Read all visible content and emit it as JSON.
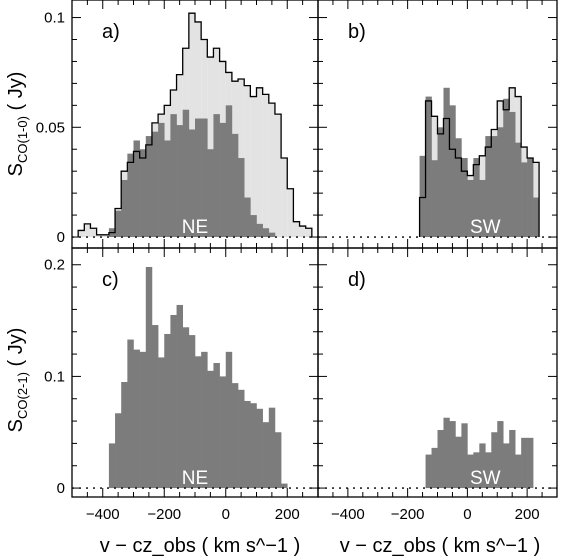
{
  "chart_data": [
    {
      "type": "bar",
      "panel": "a)",
      "region": "NE",
      "xlabel": "",
      "ylabel": "S_CO(1-0) ( Jy)",
      "xlim": [
        -500,
        300
      ],
      "ylim": [
        -0.005,
        0.108
      ],
      "yticks": [
        0,
        0.05,
        0.1
      ],
      "ytick_labels": [
        "0",
        "0.05",
        "0.1"
      ],
      "bin_width": 20,
      "series": [
        {
          "style": "light-fill-outline",
          "x": [
            -470,
            -450,
            -430,
            -410,
            -390,
            -370,
            -350,
            -330,
            -310,
            -290,
            -270,
            -250,
            -230,
            -210,
            -190,
            -170,
            -150,
            -130,
            -110,
            -90,
            -70,
            -50,
            -30,
            -10,
            10,
            30,
            50,
            70,
            90,
            110,
            130,
            150,
            170,
            190,
            210,
            230,
            250,
            270
          ],
          "values": [
            0.003,
            0.006,
            0.004,
            0.001,
            0.001,
            0.002,
            0.013,
            0.03,
            0.034,
            0.039,
            0.036,
            0.042,
            0.052,
            0.056,
            0.06,
            0.067,
            0.074,
            0.086,
            0.102,
            0.098,
            0.09,
            0.082,
            0.086,
            0.08,
            0.075,
            0.071,
            0.072,
            0.069,
            0.064,
            0.068,
            0.065,
            0.061,
            0.056,
            0.036,
            0.022,
            0.007,
            0.005,
            0.004
          ]
        },
        {
          "style": "dark-fill",
          "x": [
            -470,
            -450,
            -430,
            -410,
            -390,
            -370,
            -350,
            -330,
            -310,
            -290,
            -270,
            -250,
            -230,
            -210,
            -190,
            -170,
            -150,
            -130,
            -110,
            -90,
            -70,
            -50,
            -30,
            -10,
            10,
            30,
            50,
            70,
            90,
            110,
            130,
            150,
            170,
            190,
            210,
            230,
            250,
            270
          ],
          "values": [
            0,
            0,
            0,
            0,
            0,
            0.004,
            0.012,
            0.026,
            0.038,
            0.044,
            0.04,
            0.046,
            0.048,
            0.052,
            0.044,
            0.056,
            0.051,
            0.058,
            0.049,
            0.054,
            0.054,
            0.04,
            0.056,
            0.052,
            0.06,
            0.047,
            0.036,
            0.018,
            0.01,
            0.006,
            0.004,
            0.002,
            0,
            0,
            0,
            0,
            0,
            0
          ]
        }
      ]
    },
    {
      "type": "bar",
      "panel": "b)",
      "region": "SW",
      "xlabel": "",
      "ylabel": "",
      "xlim": [
        -500,
        300
      ],
      "ylim": [
        -0.005,
        0.108
      ],
      "bin_width": 20,
      "series": [
        {
          "style": "light-fill-outline",
          "x": [
            -150,
            -130,
            -110,
            -90,
            -70,
            -50,
            -30,
            -10,
            10,
            30,
            50,
            70,
            90,
            110,
            130,
            150,
            170,
            190,
            210,
            230
          ],
          "values": [
            0.018,
            0.062,
            0.055,
            0.047,
            0.054,
            0.04,
            0.036,
            0.03,
            0.028,
            0.033,
            0.037,
            0.041,
            0.049,
            0.062,
            0.058,
            0.068,
            0.064,
            0.041,
            0.036,
            0.034
          ]
        },
        {
          "style": "dark-fill",
          "x": [
            -150,
            -130,
            -110,
            -90,
            -70,
            -50,
            -30,
            -10,
            10,
            30,
            50,
            70,
            90,
            110,
            130,
            150,
            170,
            190,
            210,
            230
          ],
          "values": [
            0.037,
            0.064,
            0.035,
            0.05,
            0.068,
            0.06,
            0.045,
            0.036,
            0.026,
            0.036,
            0.026,
            0.046,
            0.046,
            0.05,
            0.063,
            0.057,
            0.043,
            0.034,
            0.036,
            0.018
          ]
        }
      ]
    },
    {
      "type": "bar",
      "panel": "c)",
      "region": "NE",
      "xlabel": "v − cz_obs ( km s^−1 )",
      "ylabel": "S_CO(2-1) ( Jy)",
      "xlim": [
        -500,
        300
      ],
      "ylim": [
        -0.008,
        0.215
      ],
      "xticks": [
        -400,
        -200,
        0,
        200
      ],
      "xtick_labels": [
        "−400",
        "−200",
        "0",
        "200"
      ],
      "yticks": [
        0,
        0.1,
        0.2
      ],
      "ytick_labels": [
        "0",
        "0.1",
        "0.2"
      ],
      "bin_width": 20,
      "series": [
        {
          "style": "dark-fill",
          "x": [
            -370,
            -350,
            -330,
            -310,
            -290,
            -270,
            -250,
            -230,
            -210,
            -190,
            -170,
            -150,
            -130,
            -110,
            -90,
            -70,
            -50,
            -30,
            -10,
            10,
            30,
            50,
            70,
            90,
            110,
            130,
            150,
            170,
            190
          ],
          "values": [
            0.04,
            0.067,
            0.095,
            0.133,
            0.124,
            0.122,
            0.198,
            0.146,
            0.117,
            0.138,
            0.155,
            0.164,
            0.144,
            0.137,
            0.118,
            0.122,
            0.105,
            0.112,
            0.1,
            0.122,
            0.094,
            0.088,
            0.078,
            0.076,
            0.071,
            0.059,
            0.072,
            0.05,
            0.004
          ]
        }
      ]
    },
    {
      "type": "bar",
      "panel": "d)",
      "region": "SW",
      "xlabel": "v − cz_obs ( km s^−1 )",
      "ylabel": "",
      "xlim": [
        -500,
        300
      ],
      "ylim": [
        -0.008,
        0.215
      ],
      "xticks": [
        -400,
        -200,
        0,
        200
      ],
      "xtick_labels": [
        "−400",
        "−200",
        "0",
        "200"
      ],
      "bin_width": 20,
      "series": [
        {
          "style": "dark-fill",
          "x": [
            -130,
            -110,
            -90,
            -70,
            -50,
            -30,
            -10,
            10,
            30,
            50,
            70,
            90,
            110,
            130,
            150,
            170,
            190,
            210
          ],
          "values": [
            0.03,
            0.036,
            0.052,
            0.063,
            0.06,
            0.046,
            0.058,
            0.03,
            0.032,
            0.04,
            0.032,
            0.05,
            0.06,
            0.04,
            0.052,
            0.03,
            0.045,
            0.045
          ]
        }
      ]
    }
  ],
  "colors": {
    "light_fill": "#e3e3e3",
    "dark_fill": "#7c7c7c",
    "outline": "#000000",
    "region_text": "#ffffff"
  }
}
